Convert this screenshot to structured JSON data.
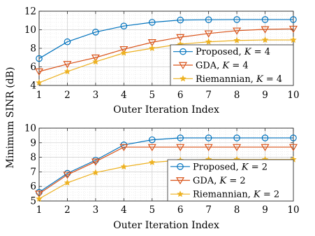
{
  "ylabel": "Minimum SINR (dB)",
  "colors": {
    "series_1": "#0072BD",
    "series_2": "#D95319",
    "series_3": "#EDB120",
    "grid_major": "#cccccc",
    "grid_minor": "#e4e4e4",
    "axes": "#262626"
  },
  "chart_data": [
    {
      "type": "line",
      "xlabel": "Outer Iteration Index",
      "xlim": [
        1,
        10
      ],
      "ylim": [
        4,
        12
      ],
      "x": [
        1,
        2,
        3,
        4,
        5,
        6,
        7,
        8,
        9,
        10
      ],
      "xticks": [
        "1",
        "2",
        "3",
        "4",
        "5",
        "6",
        "7",
        "8",
        "9",
        "10"
      ],
      "yticks": [
        "4",
        "6",
        "8",
        "10",
        "12"
      ],
      "grid": "on (major and minor)",
      "legend_position": "bottom-right",
      "series": [
        {
          "name": "Proposed, K = 4",
          "marker": "circle",
          "values": [
            6.9,
            8.7,
            9.75,
            10.4,
            10.8,
            11.05,
            11.08,
            11.1,
            11.1,
            11.1
          ]
        },
        {
          "name": "GDA, K = 4",
          "marker": "triangle-down",
          "values": [
            5.5,
            6.3,
            7.0,
            7.9,
            8.65,
            9.2,
            9.6,
            9.9,
            10.05,
            10.1
          ]
        },
        {
          "name": "Riemannian, K = 4",
          "marker": "star",
          "values": [
            4.3,
            5.5,
            6.55,
            7.5,
            8.0,
            8.45,
            8.7,
            8.85,
            8.9,
            8.9
          ]
        }
      ]
    },
    {
      "type": "line",
      "xlabel": "Outer Iteration Index",
      "xlim": [
        1,
        10
      ],
      "ylim": [
        5,
        10
      ],
      "x": [
        1,
        2,
        3,
        4,
        5,
        6,
        7,
        8,
        9,
        10
      ],
      "xticks": [
        "1",
        "2",
        "3",
        "4",
        "5",
        "6",
        "7",
        "8",
        "9",
        "10"
      ],
      "yticks": [
        "5",
        "6",
        "7",
        "8",
        "9",
        "10"
      ],
      "grid": "on (major and minor)",
      "legend_position": "bottom-right",
      "series": [
        {
          "name": "Proposed, K = 2",
          "marker": "circle",
          "values": [
            5.6,
            6.9,
            7.8,
            8.85,
            9.2,
            9.33,
            9.33,
            9.33,
            9.33,
            9.33
          ]
        },
        {
          "name": "GDA, K = 2",
          "marker": "triangle-down",
          "values": [
            5.5,
            6.8,
            7.7,
            8.7,
            8.7,
            8.7,
            8.7,
            8.7,
            8.7,
            8.7
          ]
        },
        {
          "name": "Riemannian, K = 2",
          "marker": "star",
          "values": [
            5.15,
            6.25,
            6.95,
            7.35,
            7.65,
            7.8,
            7.85,
            7.85,
            7.85,
            7.85
          ]
        }
      ]
    }
  ]
}
